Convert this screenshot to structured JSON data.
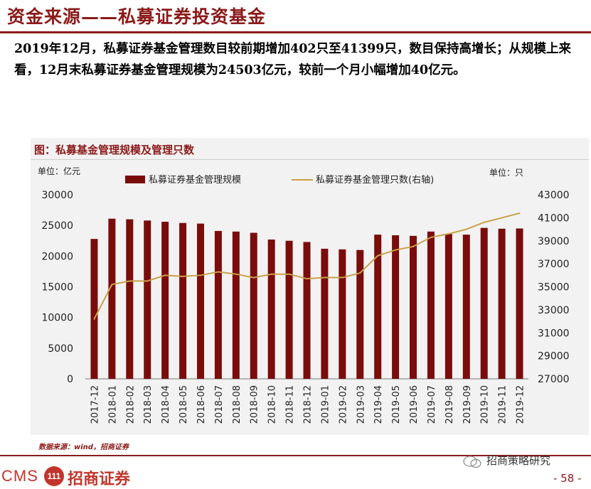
{
  "page": {
    "title": "资金来源——私募证券投资基金",
    "summary": "2019年12月，私募证券基金管理数目较前期增加402只至41399只，数目保持高增长；从规模上来看，12月末私募证券基金管理规模为24503亿元，较前一个月小幅增加40亿元。",
    "source": "数据来源：wind，招商证券",
    "wechat": "招商策略研究",
    "page_number": "- 58 -",
    "logo_cms": "CMS",
    "logo_badge": "111",
    "logo_cn": "招商证券"
  },
  "colors": {
    "brand": "#8b1a1a",
    "bar": "#7a0c0c",
    "line": "#c9a14a",
    "chart_bg": "#f2f2f2"
  },
  "chart_data": {
    "type": "bar",
    "title": "图：私募基金管理规模及管理只数",
    "left_unit": "单位：亿元",
    "right_unit": "单位：只",
    "categories": [
      "2017-12",
      "2018-01",
      "2018-02",
      "2018-03",
      "2018-04",
      "2018-05",
      "2018-06",
      "2018-07",
      "2018-08",
      "2018-09",
      "2018-10",
      "2018-11",
      "2018-12",
      "2019-01",
      "2019-02",
      "2019-03",
      "2019-04",
      "2019-05",
      "2019-06",
      "2019-07",
      "2019-08",
      "2019-09",
      "2019-10",
      "2019-11",
      "2019-12"
    ],
    "series": [
      {
        "name": "私募证券基金管理规模",
        "type": "bar",
        "axis": "left",
        "values": [
          22800,
          26100,
          26000,
          25800,
          25600,
          25400,
          25300,
          24100,
          24000,
          23800,
          22700,
          22500,
          22300,
          21200,
          21100,
          21000,
          23500,
          23400,
          23300,
          24000,
          23600,
          23500,
          24600,
          24463,
          24503
        ]
      },
      {
        "name": "私募证券基金管理只数(右轴)",
        "type": "line",
        "axis": "right",
        "values": [
          32200,
          35200,
          35500,
          35500,
          36000,
          35900,
          36000,
          36300,
          36100,
          35800,
          36100,
          36100,
          35700,
          35800,
          35800,
          36200,
          37700,
          38200,
          38500,
          39300,
          39600,
          40000,
          40600,
          40997,
          41399
        ]
      }
    ],
    "y_left": {
      "min": 0,
      "max": 30000,
      "ticks": [
        0,
        5000,
        10000,
        15000,
        20000,
        25000,
        30000
      ]
    },
    "y_right": {
      "min": 27000,
      "max": 43000,
      "ticks": [
        27000,
        29000,
        31000,
        33000,
        35000,
        37000,
        39000,
        41000,
        43000
      ]
    },
    "legend_position": "top",
    "grid": false
  }
}
